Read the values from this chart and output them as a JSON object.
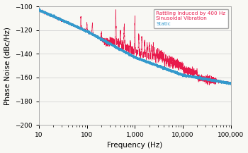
{
  "xlabel": "Frequency (Hz)",
  "ylabel": "Phase Noise (dBc/Hz)",
  "xlim": [
    10,
    100000
  ],
  "ylim": [
    -200,
    -100
  ],
  "yticks": [
    -200,
    -180,
    -160,
    -140,
    -120,
    -100
  ],
  "background_color": "#f8f8f4",
  "static_color": "#3399cc",
  "vibration_color": "#e8194b",
  "legend_labels_line1": "Rattling Induced by 400 Hz",
  "legend_labels_line2": "Sinusoidal Vibration",
  "legend_labels_line3": "Static",
  "legend_color1": "#e8194b",
  "legend_color3": "#3399cc",
  "grid_color": "#cccccc",
  "spike_freqs": [
    75,
    100,
    130,
    200,
    400,
    500,
    600,
    800,
    1000,
    1200,
    1400,
    1600,
    1800,
    2000,
    2200,
    2400,
    2600,
    2800,
    3000,
    3200,
    3400,
    3600,
    3800,
    4000,
    4400,
    4800,
    5200,
    5600,
    6000,
    6400,
    6800,
    7200,
    7600,
    8000,
    8400,
    8800,
    9200,
    9600,
    10000
  ],
  "spike_heights": [
    10,
    7,
    9,
    5,
    25,
    10,
    18,
    6,
    28,
    16,
    14,
    12,
    11,
    10,
    9,
    9,
    8,
    8,
    8,
    7,
    7,
    7,
    6,
    6,
    6,
    5,
    5,
    5,
    5,
    5,
    4,
    4,
    4,
    4,
    4,
    4,
    3,
    3,
    3
  ]
}
